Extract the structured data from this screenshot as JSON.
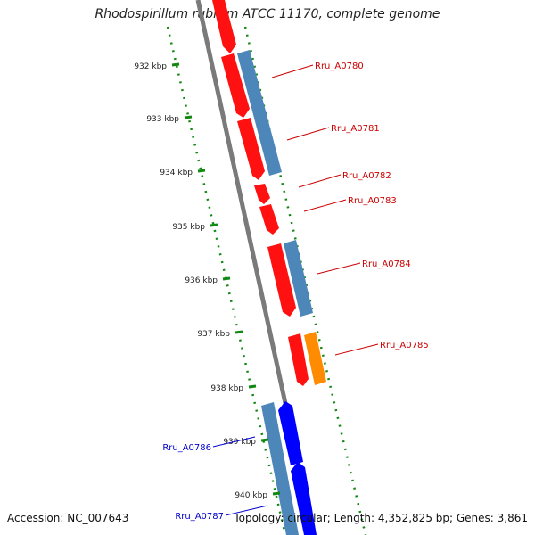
{
  "title": "Rhodospirillum rubrum ATCC 11170, complete genome",
  "footer": {
    "accession": "Accession: NC_007643",
    "summary": "Topology: circular; Length: 4,352,825 bp; Genes: 3,861"
  },
  "colors": {
    "backbone": "#777777",
    "ticks": "#118811",
    "forward_cds": "#ff1111",
    "forward_gene": "#4d86b8",
    "forward_other": "#ff8c00",
    "reverse_cds": "#0000ff",
    "reverse_gene": "#4d86b8",
    "forward_label": "#cc0000",
    "reverse_label": "#0000cc"
  },
  "kbp_ticks": [
    "932 kbp",
    "933 kbp",
    "934 kbp",
    "935 kbp",
    "936 kbp",
    "937 kbp",
    "938 kbp",
    "939 kbp",
    "940 kbp"
  ],
  "gene_labels_forward": [
    "Rru_A0780",
    "Rru_A0781",
    "Rru_A0782",
    "Rru_A0783",
    "Rru_A0784",
    "Rru_A0785"
  ],
  "gene_labels_reverse": [
    "Rru_A0786",
    "Rru_A0787"
  ]
}
